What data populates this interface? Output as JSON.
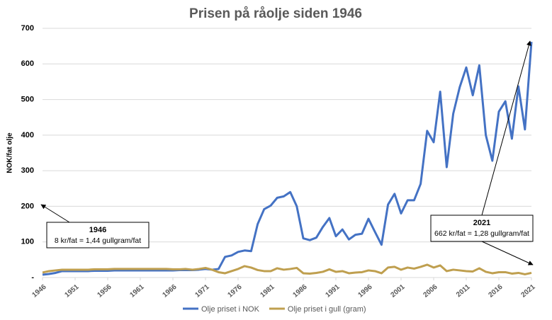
{
  "chart_data": {
    "type": "line",
    "title": "Prisen på råolje siden 1946",
    "y_label": "NOK/fat olje",
    "x": [
      1946,
      1947,
      1948,
      1949,
      1950,
      1951,
      1952,
      1953,
      1954,
      1955,
      1956,
      1957,
      1958,
      1959,
      1960,
      1961,
      1962,
      1963,
      1964,
      1965,
      1966,
      1967,
      1968,
      1969,
      1970,
      1971,
      1972,
      1973,
      1974,
      1975,
      1976,
      1977,
      1978,
      1979,
      1980,
      1981,
      1982,
      1983,
      1984,
      1985,
      1986,
      1987,
      1988,
      1989,
      1990,
      1991,
      1992,
      1993,
      1994,
      1995,
      1996,
      1997,
      1998,
      1999,
      2000,
      2001,
      2002,
      2003,
      2004,
      2005,
      2006,
      2007,
      2008,
      2009,
      2010,
      2011,
      2012,
      2013,
      2014,
      2015,
      2016,
      2017,
      2018,
      2019,
      2020,
      2021
    ],
    "series": [
      {
        "name": "Olje priset i NOK",
        "color": "#4472c4",
        "values": [
          8,
          10,
          13,
          18,
          18,
          18,
          18,
          18,
          19,
          19,
          19,
          20,
          20,
          20,
          20,
          20,
          20,
          20,
          20,
          20,
          20,
          21,
          21,
          21,
          22,
          24,
          22,
          24,
          58,
          62,
          72,
          76,
          74,
          150,
          192,
          202,
          224,
          228,
          240,
          200,
          110,
          105,
          112,
          142,
          167,
          116,
          135,
          107,
          120,
          123,
          165,
          128,
          92,
          205,
          235,
          180,
          217,
          217,
          263,
          412,
          380,
          522,
          310,
          460,
          535,
          590,
          512,
          596,
          400,
          328,
          466,
          495,
          390,
          537,
          416,
          662
        ]
      },
      {
        "name": "Olje priset i gull (gram)",
        "color": "#bf9f4f",
        "values": [
          14,
          18,
          20,
          22,
          22,
          22,
          22,
          22,
          23,
          23,
          23,
          24,
          24,
          24,
          24,
          24,
          24,
          24,
          24,
          24,
          23,
          23,
          24,
          22,
          24,
          27,
          22,
          15,
          12,
          18,
          24,
          32,
          28,
          21,
          18,
          18,
          26,
          22,
          24,
          27,
          12,
          11,
          13,
          16,
          23,
          16,
          18,
          12,
          14,
          15,
          20,
          18,
          12,
          28,
          30,
          22,
          28,
          25,
          30,
          36,
          28,
          34,
          18,
          22,
          20,
          18,
          17,
          26,
          16,
          12,
          15,
          15,
          11,
          13,
          9,
          13
        ]
      }
    ],
    "xlim": [
      1946,
      2021
    ],
    "xticks": [
      1946,
      1951,
      1956,
      1961,
      1966,
      1971,
      1976,
      1981,
      1986,
      1991,
      1996,
      2001,
      2006,
      2011,
      2016,
      2021
    ],
    "ylim": [
      0,
      700
    ],
    "yticks": [
      {
        "value": 0,
        "label": "-"
      },
      100,
      200,
      300,
      400,
      500,
      600,
      700
    ],
    "grid": true,
    "legend": "bottom",
    "annotations": [
      {
        "title": "1946",
        "text": "8 kr/fat = 1,44 gullgram/fat"
      },
      {
        "title": "2021",
        "text": "662 kr/fat = 1,28 gullgram/fat"
      }
    ]
  }
}
